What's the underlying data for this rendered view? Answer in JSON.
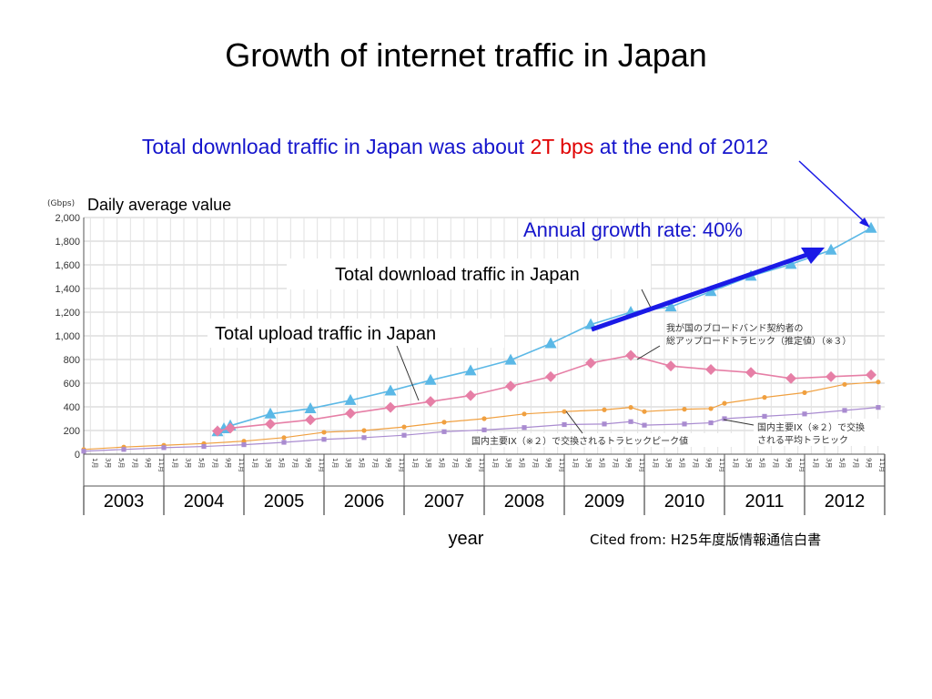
{
  "slide": {
    "title": "Growth of internet traffic in Japan",
    "headline_part1": "Total download traffic in Japan was about ",
    "headline_value": "2T",
    "headline_unit": " bps",
    "headline_part2": " at the end of 2012"
  },
  "chart_data": {
    "type": "line",
    "yunit": "(Gbps)",
    "subtitle": "Daily average value",
    "ylim": [
      0,
      2000
    ],
    "yticks": [
      "0",
      "200",
      "400",
      "600",
      "800",
      "1,000",
      "1,200",
      "1,400",
      "1,600",
      "1,800",
      "2,000"
    ],
    "ytick_values": [
      0,
      200,
      400,
      600,
      800,
      1000,
      1200,
      1400,
      1600,
      1800,
      2000
    ],
    "month_labels": [
      "1月",
      "3月",
      "5月",
      "7月",
      "9月",
      "11月"
    ],
    "years": [
      "2003",
      "2004",
      "2005",
      "2006",
      "2007",
      "2008",
      "2009",
      "2010",
      "2011",
      "2012"
    ],
    "xlabel": "year",
    "grid": true,
    "series": [
      {
        "name": "Total download traffic in Japan",
        "color": "#5bb8e6",
        "marker": "triangle",
        "x": [
          2004.67,
          2004.75,
          2004.83,
          2005.33,
          2005.83,
          2006.33,
          2006.83,
          2007.33,
          2007.83,
          2008.33,
          2008.83,
          2009.33,
          2009.83,
          2010.33,
          2010.83,
          2011.33,
          2011.83,
          2012.33,
          2012.83
        ],
        "values": [
          190,
          215,
          240,
          340,
          385,
          455,
          535,
          625,
          705,
          795,
          935,
          1095,
          1200,
          1245,
          1375,
          1505,
          1605,
          1725,
          1910
        ]
      },
      {
        "name": "Total upload traffic in Japan",
        "color": "#e67fa6",
        "marker": "diamond",
        "x": [
          2004.67,
          2004.83,
          2005.33,
          2005.83,
          2006.33,
          2006.83,
          2007.33,
          2007.83,
          2008.33,
          2008.83,
          2009.33,
          2009.83,
          2010.33,
          2010.83,
          2011.33,
          2011.83,
          2012.33,
          2012.83
        ],
        "values": [
          195,
          220,
          255,
          290,
          345,
          395,
          445,
          495,
          575,
          655,
          770,
          835,
          745,
          715,
          690,
          640,
          655,
          670
        ]
      },
      {
        "name": "国内主要IX（※２）で交換されるトラヒックピーク値",
        "color": "#f0a040",
        "marker": "circle",
        "x": [
          2003.0,
          2003.5,
          2004.0,
          2004.5,
          2005.0,
          2005.5,
          2006.0,
          2006.5,
          2007.0,
          2007.5,
          2008.0,
          2008.5,
          2009.0,
          2009.5,
          2009.83,
          2010.0,
          2010.5,
          2010.83,
          2011.0,
          2011.5,
          2012.0,
          2012.5,
          2012.92
        ],
        "values": [
          40,
          60,
          75,
          90,
          110,
          140,
          185,
          200,
          230,
          270,
          300,
          340,
          360,
          375,
          395,
          360,
          380,
          385,
          430,
          480,
          520,
          590,
          610
        ]
      },
      {
        "name": "国内主要IX（※２）で交換される平均トラヒック",
        "color": "#a98bd0",
        "marker": "square",
        "x": [
          2003.0,
          2003.5,
          2004.0,
          2004.5,
          2005.0,
          2005.5,
          2006.0,
          2006.5,
          2007.0,
          2007.5,
          2008.0,
          2008.5,
          2009.0,
          2009.5,
          2009.83,
          2010.0,
          2010.5,
          2010.83,
          2011.0,
          2011.5,
          2012.0,
          2012.5,
          2012.92
        ],
        "values": [
          25,
          40,
          55,
          65,
          80,
          100,
          125,
          140,
          160,
          190,
          205,
          225,
          250,
          255,
          275,
          245,
          255,
          265,
          300,
          320,
          340,
          370,
          395
        ]
      }
    ],
    "annotations": {
      "download_label": "Total download traffic in Japan",
      "upload_label": "Total upload traffic in Japan",
      "growth_rate": "Annual growth rate: 40%",
      "jp_upload_estimate_line1": "我が国のブロードバンド契約者の",
      "jp_upload_estimate_line2": "総アップロードトラヒック（推定値）（※３）",
      "jp_ix_peak": "国内主要IX（※２）で交換されるトラヒックピーク値",
      "jp_ix_avg_line1": "国内主要IX（※２）で交換",
      "jp_ix_avg_line2": "される平均トラヒック",
      "source": "Cited from: H25年度版情報通信白書"
    }
  }
}
